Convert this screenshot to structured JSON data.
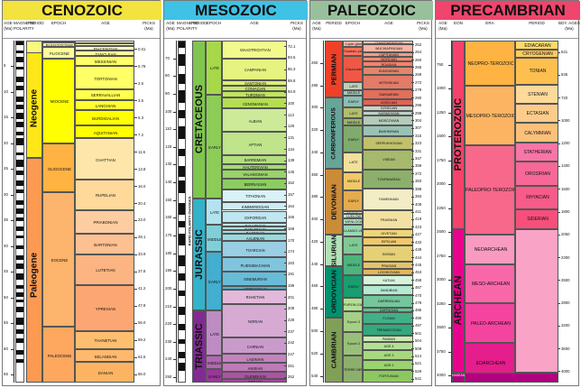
{
  "panels": [
    {
      "id": "cenozoic",
      "title": "CENOZOIC",
      "color": "#f2e33e",
      "x": 2,
      "w": 176
    },
    {
      "id": "mesozoic",
      "title": "MESOZOIC",
      "color": "#3fc2e5",
      "x": 181,
      "w": 159
    },
    {
      "id": "paleozoic",
      "title": "PALEOZOIC",
      "color": "#99c09c",
      "x": 343,
      "w": 136
    },
    {
      "id": "precambrian",
      "title": "PRECAMBRIAN",
      "color": "#f0456c",
      "x": 482,
      "w": 160
    }
  ],
  "cenozoic": {
    "headers": {
      "age": "AGE (Ma)",
      "polarity": "MAGNETIC POLARITY",
      "period": "PERIOD",
      "epoch": "EPOCH",
      "stage": "AGE",
      "picks": "PICKS (Ma)"
    },
    "era_label": "CENOZOIC",
    "period_labels": [
      "QUATER-NARY",
      "Neogene",
      "Paleogene"
    ],
    "epochs": [
      "HOLOCENE",
      "PLEISTOCENE",
      "PLIOCENE",
      "MIOCENE",
      "OLIGOCENE",
      "EOCENE",
      "PALEOCENE"
    ],
    "stages": [
      "CALABRIAN",
      "GELASIAN",
      "PIACENZIAN",
      "ZANCLEAN",
      "MESSINIAN",
      "TORTONIAN",
      "SERRAVALLIAN",
      "LANGHIAN",
      "BURDIGALIAN",
      "AQUITANIAN",
      "CHATTIAN",
      "RUPELIAN",
      "PRIABONIAN",
      "BARTONIAN",
      "LUTETIAN",
      "YPRESIAN",
      "THANETIAN",
      "SELANDIAN",
      "DANIAN"
    ],
    "age_ticks": [
      "5",
      "10",
      "15",
      "20",
      "25",
      "30",
      "35",
      "40",
      "45",
      "50",
      "55",
      "60",
      "65"
    ],
    "picks": [
      "0.01",
      "0.78",
      "2.6",
      "3.6",
      "5.3",
      "7.2",
      "11.6",
      "13.8",
      "16.0",
      "20.4",
      "23.0",
      "28.1",
      "33.9",
      "37.8",
      "41.2",
      "47.8",
      "56.0",
      "59.2",
      "61.6",
      "66.0"
    ]
  },
  "mesozoic": {
    "headers": {
      "age": "AGE (Ma)",
      "polarity": "MAGNETIC POLARITY",
      "period": "PERIOD",
      "epoch": "EPOCH",
      "stage": "AGE",
      "picks": "PICKS (Ma)"
    },
    "periods": [
      "CRETACEOUS",
      "JURASSIC",
      "TRIASSIC"
    ],
    "epochs": [
      "LATE",
      "EARLY",
      "LATE",
      "MIDDLE",
      "EARLY",
      "LATE",
      "MIDDLE",
      "EARLY"
    ],
    "stages": [
      "MAASTRICHTIAN",
      "CAMPANIAN",
      "SANTONIAN",
      "CONIACIAN",
      "TURONIAN",
      "CENOMANIAN",
      "ALBIAN",
      "APTIAN",
      "BARREMIAN",
      "HAUTERIVIAN",
      "VALANGINIAN",
      "BERRIASIAN",
      "TITHONIAN",
      "KIMMERIDGIAN",
      "OXFORDIAN",
      "CALLOVIAN",
      "BATHONIAN",
      "BAJOCIAN",
      "AALENIAN",
      "TOARCIAN",
      "PLIENSBACHIAN",
      "SINEMURIAN",
      "HETTANGIAN",
      "RHAETIAN",
      "NORIAN",
      "CARNIAN",
      "LADINIAN",
      "ANISIAN",
      "OLENEKIAN",
      "INDUAN"
    ],
    "age_ticks": [
      "70",
      "80",
      "90",
      "100",
      "110",
      "120",
      "130",
      "140",
      "150",
      "160",
      "170",
      "180",
      "190",
      "200",
      "210",
      "220",
      "230",
      "240",
      "250"
    ],
    "picks": [
      "72.1",
      "83.6",
      "86.3",
      "89.8",
      "93.9",
      "100",
      "113",
      "126",
      "131",
      "134",
      "139",
      "145",
      "152",
      "157",
      "164",
      "166",
      "168",
      "170",
      "174",
      "183",
      "191",
      "199",
      "201",
      "209",
      "228",
      "237",
      "242",
      "247",
      "251",
      "252"
    ],
    "polarity_note": "RAPID POLARITY CHANGES"
  },
  "paleozoic": {
    "headers": {
      "age": "AGE (Ma)",
      "period": "PERIOD",
      "epoch": "EPOCH",
      "stage": "AGE",
      "picks": "PICKS (Ma)"
    },
    "periods": [
      "PERMIAN",
      "CARBONIFEROUS",
      "DEVONIAN",
      "SILURIAN",
      "ORDOVICIAN",
      "CAMBRIAN"
    ],
    "sub_periods": [
      "PENNSYL-VANIAN",
      "MISSIS-SIPPIAN"
    ],
    "epochs": [
      "Lopin-gian",
      "Guadalu-pian",
      "Cisura-lian",
      "LATE",
      "MIDDLE",
      "EARLY",
      "LATE",
      "MIDDLE",
      "EARLY",
      "LATE",
      "MIDDLE",
      "EARLY",
      "PRIDOLI",
      "LUDLOW",
      "WENLOCK",
      "LLANDO-VERY",
      "LATE",
      "MIDDLE",
      "EARLY",
      "FURON-GIAN",
      "Epoch 3",
      "Epoch 2",
      "TERRE-NEUVIAN"
    ],
    "stages": [
      "CHANGHSINGIAN",
      "WUCHIAPINGIAN",
      "CAPITANIAN",
      "WORDIAN",
      "ROADIAN",
      "KUNGURIAN",
      "ARTINSKIAN",
      "SAKMARIAN",
      "ASSELIAN",
      "GZHELIAN",
      "KASIMOVIAN",
      "MOSCOVIAN",
      "BASHKIRIAN",
      "SERPUKHOVIAN",
      "VISEAN",
      "TOURNAISIAN",
      "FAMENNIAN",
      "FRASNIAN",
      "GIVETIAN",
      "EIFELIAN",
      "EMSIAN",
      "PRAGIAN",
      "LOCHKOVIAN",
      "KATIAN",
      "SANDBIAN",
      "DARRIWILIAN",
      "DAPINGIAN",
      "FLOIAN",
      "TREMADOCIAN",
      "PAIBIAN",
      "AGE 4",
      "AGE 3",
      "AGE 2",
      "FORTUNIAN"
    ],
    "age_ticks": [
      "260",
      "280",
      "300",
      "320",
      "340",
      "360",
      "380",
      "400",
      "420",
      "440",
      "460",
      "480",
      "500",
      "520",
      "540"
    ],
    "picks": [
      "252",
      "254",
      "260",
      "265",
      "269",
      "272",
      "279",
      "290",
      "296",
      "299",
      "304",
      "307",
      "315",
      "323",
      "331",
      "347",
      "359",
      "372",
      "383",
      "388",
      "393",
      "408",
      "411",
      "419",
      "423",
      "427",
      "433",
      "439",
      "444",
      "445",
      "453",
      "458",
      "467",
      "470",
      "478",
      "485",
      "490",
      "497",
      "501",
      "504",
      "509",
      "514",
      "521",
      "529",
      "541"
    ]
  },
  "precambrian": {
    "headers": {
      "age": "AGE (Ma)",
      "eon": "EON",
      "era": "ERA",
      "period": "PERIOD",
      "bdy": "BDY. AGES (Ma)"
    },
    "eons": [
      "PROTEROZOIC",
      "ARCHEAN",
      "HADEAN"
    ],
    "eras": [
      "NEOPRO-TEROZOIC",
      "MESOPRO-TEROZOIC",
      "PALEOPRO-TEROZOIC",
      "NEOARCHEAN",
      "MESO-ARCHEAN",
      "PALEO-ARCHEAN",
      "EOARCHEAN"
    ],
    "periods": [
      "EDIACARAN",
      "CRYOGENIAN",
      "TONIAN",
      "STENIAN",
      "ECTASIAN",
      "CALYMMIAN",
      "STATHERIAN",
      "OROSIRIAN",
      "RHYACIAN",
      "SIDERIAN"
    ],
    "age_ticks": [
      "750",
      "1000",
      "1250",
      "1500",
      "1750",
      "2000",
      "2250",
      "2500",
      "2750",
      "3000",
      "3250",
      "3500",
      "3750",
      "4000"
    ],
    "bdy": [
      "541",
      "635",
      "720",
      "1000",
      "1200",
      "1400",
      "1600",
      "1800",
      "2050",
      "2300",
      "2500",
      "2800",
      "3200",
      "3600",
      "4000"
    ]
  }
}
